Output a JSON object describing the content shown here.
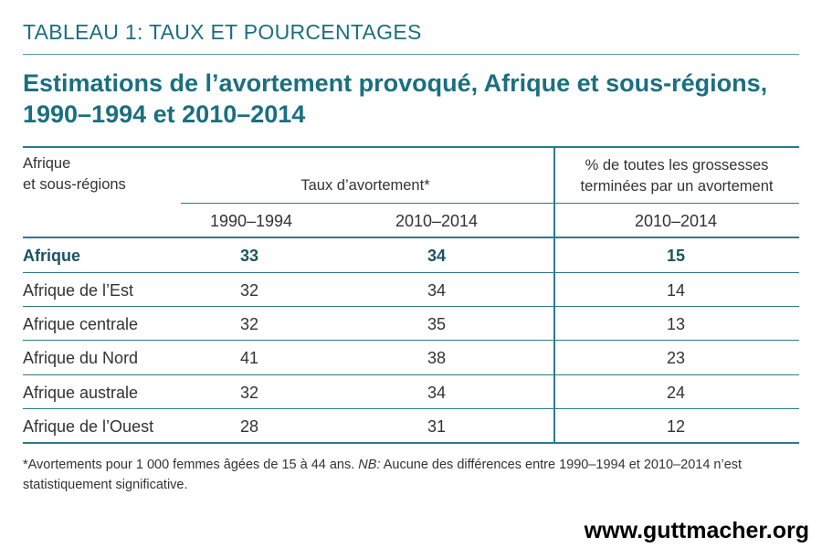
{
  "header": {
    "table_label": "TABLEAU 1: TAUX ET POURCENTAGES",
    "title": "Estimations de l’avortement provoqué, Afrique et sous-régions, 1990–1994 et 2010–2014"
  },
  "table": {
    "col_region_line1": "Afrique",
    "col_region_line2": "et sous-régions",
    "col_rate": "Taux d’avortement*",
    "col_pct_line1": "% de toutes les grossesses",
    "col_pct_line2": "terminées par un avortement",
    "sub_1990": "1990–1994",
    "sub_2010": "2010–2014",
    "sub_2010_pct": "2010–2014",
    "rows": [
      {
        "region": "Afrique",
        "rate_1990": "33",
        "rate_2010": "34",
        "pct_2010": "15"
      },
      {
        "region": "Afrique de l’Est",
        "rate_1990": "32",
        "rate_2010": "34",
        "pct_2010": "14"
      },
      {
        "region": "Afrique centrale",
        "rate_1990": "32",
        "rate_2010": "35",
        "pct_2010": "13"
      },
      {
        "region": "Afrique du Nord",
        "rate_1990": "41",
        "rate_2010": "38",
        "pct_2010": "23"
      },
      {
        "region": "Afrique australe",
        "rate_1990": "32",
        "rate_2010": "34",
        "pct_2010": "24"
      },
      {
        "region": "Afrique de l’Ouest",
        "rate_1990": "28",
        "rate_2010": "31",
        "pct_2010": "12"
      }
    ]
  },
  "footnote": {
    "star": "*Avortements pour 1 000 femmes âgées de 15 à 44 ans.",
    "nb_label": "NB:",
    "nb_text": "Aucune des différences entre 1990–1994 et 2010–2014 n’est statistiquement significative."
  },
  "brand": "www.guttmacher.org",
  "colors": {
    "accent": "#1a6f80",
    "rule": "#2a7c8c"
  }
}
